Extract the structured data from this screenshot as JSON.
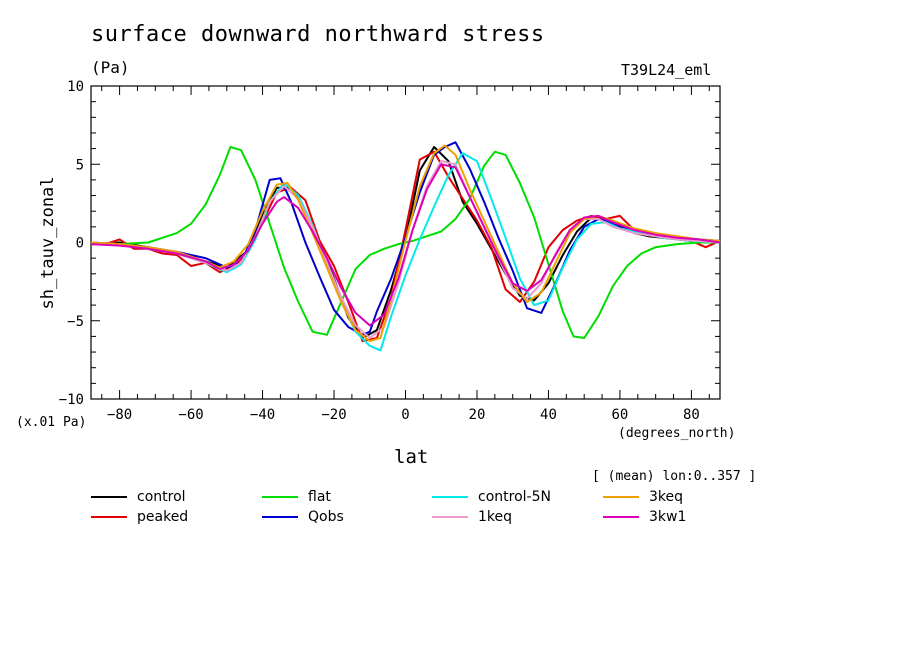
{
  "chart_data": {
    "type": "line",
    "title": "surface downward northward stress",
    "units": "(Pa)",
    "model_label": "T39L24_eml",
    "ylabel": "sh_tauv_zonal",
    "y_scale_label": "(x.01 Pa)",
    "xlabel": "lat",
    "x_units_label": "(degrees_north)",
    "mean_label": "[ (mean) lon:0..357 ]",
    "xlim": [
      -88,
      88
    ],
    "ylim": [
      -10,
      10
    ],
    "xticks": [
      -80,
      -60,
      -40,
      -20,
      0,
      20,
      40,
      60,
      80
    ],
    "xtick_labels": [
      "−80",
      "−60",
      "−40",
      "−20",
      "0",
      "20",
      "40",
      "60",
      "80"
    ],
    "yticks": [
      -10,
      -5,
      0,
      5,
      10
    ],
    "ytick_labels": [
      "−10",
      "−5",
      "0",
      "5",
      "10"
    ],
    "series": [
      {
        "name": "control",
        "color": "#000000",
        "x": [
          -88,
          -80,
          -72,
          -64,
          -56,
          -50,
          -44,
          -40,
          -36,
          -32,
          -28,
          -24,
          -20,
          -16,
          -12,
          -8,
          -4,
          0,
          4,
          8,
          12,
          16,
          20,
          24,
          28,
          32,
          36,
          40,
          44,
          48,
          52,
          56,
          60,
          64,
          68,
          72,
          76,
          80,
          84,
          88
        ],
        "y": [
          -0.1,
          0.0,
          -0.3,
          -0.7,
          -1.2,
          -1.6,
          -0.5,
          1.8,
          3.5,
          3.5,
          2.0,
          0.0,
          -2.3,
          -4.8,
          -6.1,
          -5.6,
          -3.0,
          0.2,
          4.6,
          6.1,
          5.2,
          2.6,
          1.2,
          -0.4,
          -2.0,
          -3.4,
          -3.7,
          -2.6,
          -0.8,
          0.7,
          1.6,
          1.5,
          1.0,
          0.6,
          0.4,
          0.3,
          0.2,
          0.1,
          0.0,
          0.0
        ]
      },
      {
        "name": "peaked",
        "color": "#e00000",
        "x": [
          -88,
          -84,
          -80,
          -76,
          -72,
          -68,
          -64,
          -60,
          -56,
          -52,
          -48,
          -44,
          -40,
          -36,
          -32,
          -28,
          -24,
          -20,
          -16,
          -12,
          -8,
          -4,
          0,
          4,
          8,
          12,
          16,
          20,
          24,
          28,
          32,
          36,
          40,
          44,
          48,
          52,
          56,
          60,
          64,
          68,
          72,
          76,
          80,
          84,
          88
        ],
        "y": [
          -0.1,
          -0.1,
          0.2,
          -0.4,
          -0.4,
          -0.7,
          -0.8,
          -1.5,
          -1.3,
          -1.9,
          -1.5,
          -0.6,
          1.3,
          3.2,
          3.5,
          2.7,
          0.1,
          -1.5,
          -3.8,
          -6.3,
          -6.1,
          -3.5,
          0.8,
          5.3,
          5.8,
          4.2,
          2.8,
          1.4,
          -0.3,
          -3.0,
          -3.8,
          -2.5,
          -0.3,
          0.8,
          1.4,
          1.7,
          1.5,
          1.7,
          0.8,
          0.6,
          0.5,
          0.2,
          0.1,
          -0.3,
          0.1
        ]
      },
      {
        "name": "flat",
        "color": "#00dd00",
        "x": [
          -88,
          -80,
          -72,
          -64,
          -60,
          -56,
          -52,
          -49,
          -46,
          -42,
          -38,
          -34,
          -30,
          -26,
          -22,
          -18,
          -14,
          -10,
          -6,
          -2,
          2,
          6,
          10,
          14,
          18,
          22,
          25,
          28,
          32,
          36,
          40,
          44,
          47,
          50,
          54,
          58,
          62,
          66,
          70,
          76,
          82,
          88
        ],
        "y": [
          0.0,
          -0.1,
          0.0,
          0.6,
          1.2,
          2.4,
          4.3,
          6.1,
          5.9,
          4.0,
          1.2,
          -1.6,
          -3.8,
          -5.7,
          -5.9,
          -3.8,
          -1.7,
          -0.8,
          -0.4,
          -0.1,
          0.1,
          0.4,
          0.7,
          1.5,
          2.8,
          4.9,
          5.8,
          5.6,
          3.8,
          1.6,
          -1.4,
          -4.4,
          -6.0,
          -6.1,
          -4.7,
          -2.8,
          -1.5,
          -0.7,
          -0.3,
          -0.1,
          0.0,
          0.0
        ]
      },
      {
        "name": "Qobs",
        "color": "#0000cc",
        "x": [
          -88,
          -80,
          -72,
          -64,
          -56,
          -50,
          -46,
          -42,
          -38,
          -35,
          -32,
          -28,
          -24,
          -20,
          -16,
          -12,
          -10,
          -8,
          -4,
          0,
          4,
          8,
          11,
          14,
          18,
          22,
          26,
          30,
          34,
          38,
          42,
          46,
          50,
          54,
          58,
          64,
          70,
          76,
          82,
          88
        ],
        "y": [
          0.0,
          -0.1,
          -0.3,
          -0.6,
          -1.0,
          -1.6,
          -1.3,
          0.8,
          4.0,
          4.1,
          2.6,
          0.0,
          -2.2,
          -4.3,
          -5.4,
          -5.9,
          -5.7,
          -4.4,
          -2.3,
          0.3,
          3.2,
          5.6,
          6.1,
          6.4,
          4.7,
          2.6,
          0.3,
          -1.8,
          -4.2,
          -4.5,
          -2.6,
          -0.5,
          1.0,
          1.5,
          1.2,
          0.8,
          0.5,
          0.3,
          0.2,
          0.1
        ]
      },
      {
        "name": "control-5N",
        "color": "#00eaea",
        "x": [
          -88,
          -80,
          -72,
          -64,
          -56,
          -50,
          -46,
          -42,
          -38,
          -34,
          -30,
          -26,
          -22,
          -18,
          -14,
          -10,
          -7,
          -4,
          0,
          4,
          8,
          12,
          16,
          20,
          24,
          28,
          32,
          36,
          40,
          44,
          48,
          52,
          56,
          60,
          66,
          72,
          80,
          88
        ],
        "y": [
          0.0,
          -0.1,
          -0.4,
          -0.7,
          -1.3,
          -1.9,
          -1.4,
          0.2,
          2.6,
          3.8,
          3.0,
          1.1,
          -1.4,
          -3.7,
          -5.7,
          -6.6,
          -6.9,
          -4.7,
          -2.1,
          0.2,
          2.3,
          4.3,
          5.7,
          5.2,
          2.8,
          0.3,
          -2.3,
          -4.0,
          -3.7,
          -1.6,
          0.2,
          1.2,
          1.3,
          0.9,
          0.6,
          0.3,
          0.1,
          0.0
        ]
      },
      {
        "name": "1keq",
        "color": "#ee99cc",
        "x": [
          -88,
          -80,
          -72,
          -64,
          -56,
          -50,
          -46,
          -42,
          -38,
          -34,
          -30,
          -26,
          -22,
          -18,
          -14,
          -10,
          -6,
          -2,
          2,
          6,
          10,
          14,
          18,
          22,
          26,
          30,
          34,
          38,
          42,
          46,
          50,
          54,
          58,
          64,
          70,
          76,
          82,
          88
        ],
        "y": [
          0.0,
          -0.1,
          -0.4,
          -0.7,
          -1.3,
          -1.8,
          -1.3,
          0.4,
          2.6,
          3.6,
          2.8,
          1.0,
          -1.3,
          -3.5,
          -5.3,
          -6.1,
          -5.4,
          -2.6,
          0.8,
          3.6,
          5.2,
          5.0,
          2.9,
          1.0,
          -1.0,
          -2.9,
          -3.6,
          -2.6,
          -0.7,
          0.8,
          1.5,
          1.5,
          1.0,
          0.6,
          0.4,
          0.2,
          0.1,
          0.0
        ]
      },
      {
        "name": "3keq",
        "color": "#eea000",
        "x": [
          -88,
          -80,
          -72,
          -64,
          -56,
          -52,
          -48,
          -44,
          -40,
          -36,
          -33,
          -30,
          -26,
          -22,
          -18,
          -14,
          -10,
          -7,
          -4,
          0,
          4,
          8,
          11,
          14,
          18,
          22,
          26,
          30,
          34,
          38,
          42,
          46,
          50,
          54,
          58,
          64,
          70,
          76,
          82,
          88
        ],
        "y": [
          0.0,
          -0.1,
          -0.3,
          -0.6,
          -1.2,
          -1.6,
          -1.2,
          -0.1,
          2.0,
          3.7,
          3.8,
          2.7,
          0.6,
          -1.6,
          -3.8,
          -5.6,
          -6.3,
          -6.1,
          -3.6,
          0.1,
          3.6,
          5.7,
          6.2,
          5.6,
          3.4,
          1.4,
          -0.6,
          -2.6,
          -3.8,
          -3.2,
          -1.3,
          0.6,
          1.5,
          1.7,
          1.4,
          0.9,
          0.6,
          0.4,
          0.2,
          0.1
        ]
      },
      {
        "name": "3kw1",
        "color": "#dd00bb",
        "x": [
          -88,
          -80,
          -72,
          -64,
          -56,
          -52,
          -48,
          -44,
          -40,
          -36,
          -34,
          -30,
          -26,
          -22,
          -18,
          -14,
          -10,
          -6,
          -2,
          2,
          6,
          10,
          14,
          18,
          22,
          26,
          30,
          34,
          38,
          42,
          46,
          50,
          54,
          58,
          64,
          70,
          76,
          82,
          88
        ],
        "y": [
          -0.1,
          -0.2,
          -0.4,
          -0.7,
          -1.2,
          -1.7,
          -1.4,
          -0.5,
          1.2,
          2.6,
          2.9,
          2.2,
          0.7,
          -1.0,
          -2.9,
          -4.5,
          -5.3,
          -4.6,
          -2.3,
          0.8,
          3.4,
          5.0,
          4.8,
          2.9,
          1.0,
          -0.9,
          -2.6,
          -3.1,
          -2.4,
          -0.8,
          0.8,
          1.6,
          1.7,
          1.3,
          0.8,
          0.5,
          0.3,
          0.2,
          0.0
        ]
      }
    ]
  }
}
